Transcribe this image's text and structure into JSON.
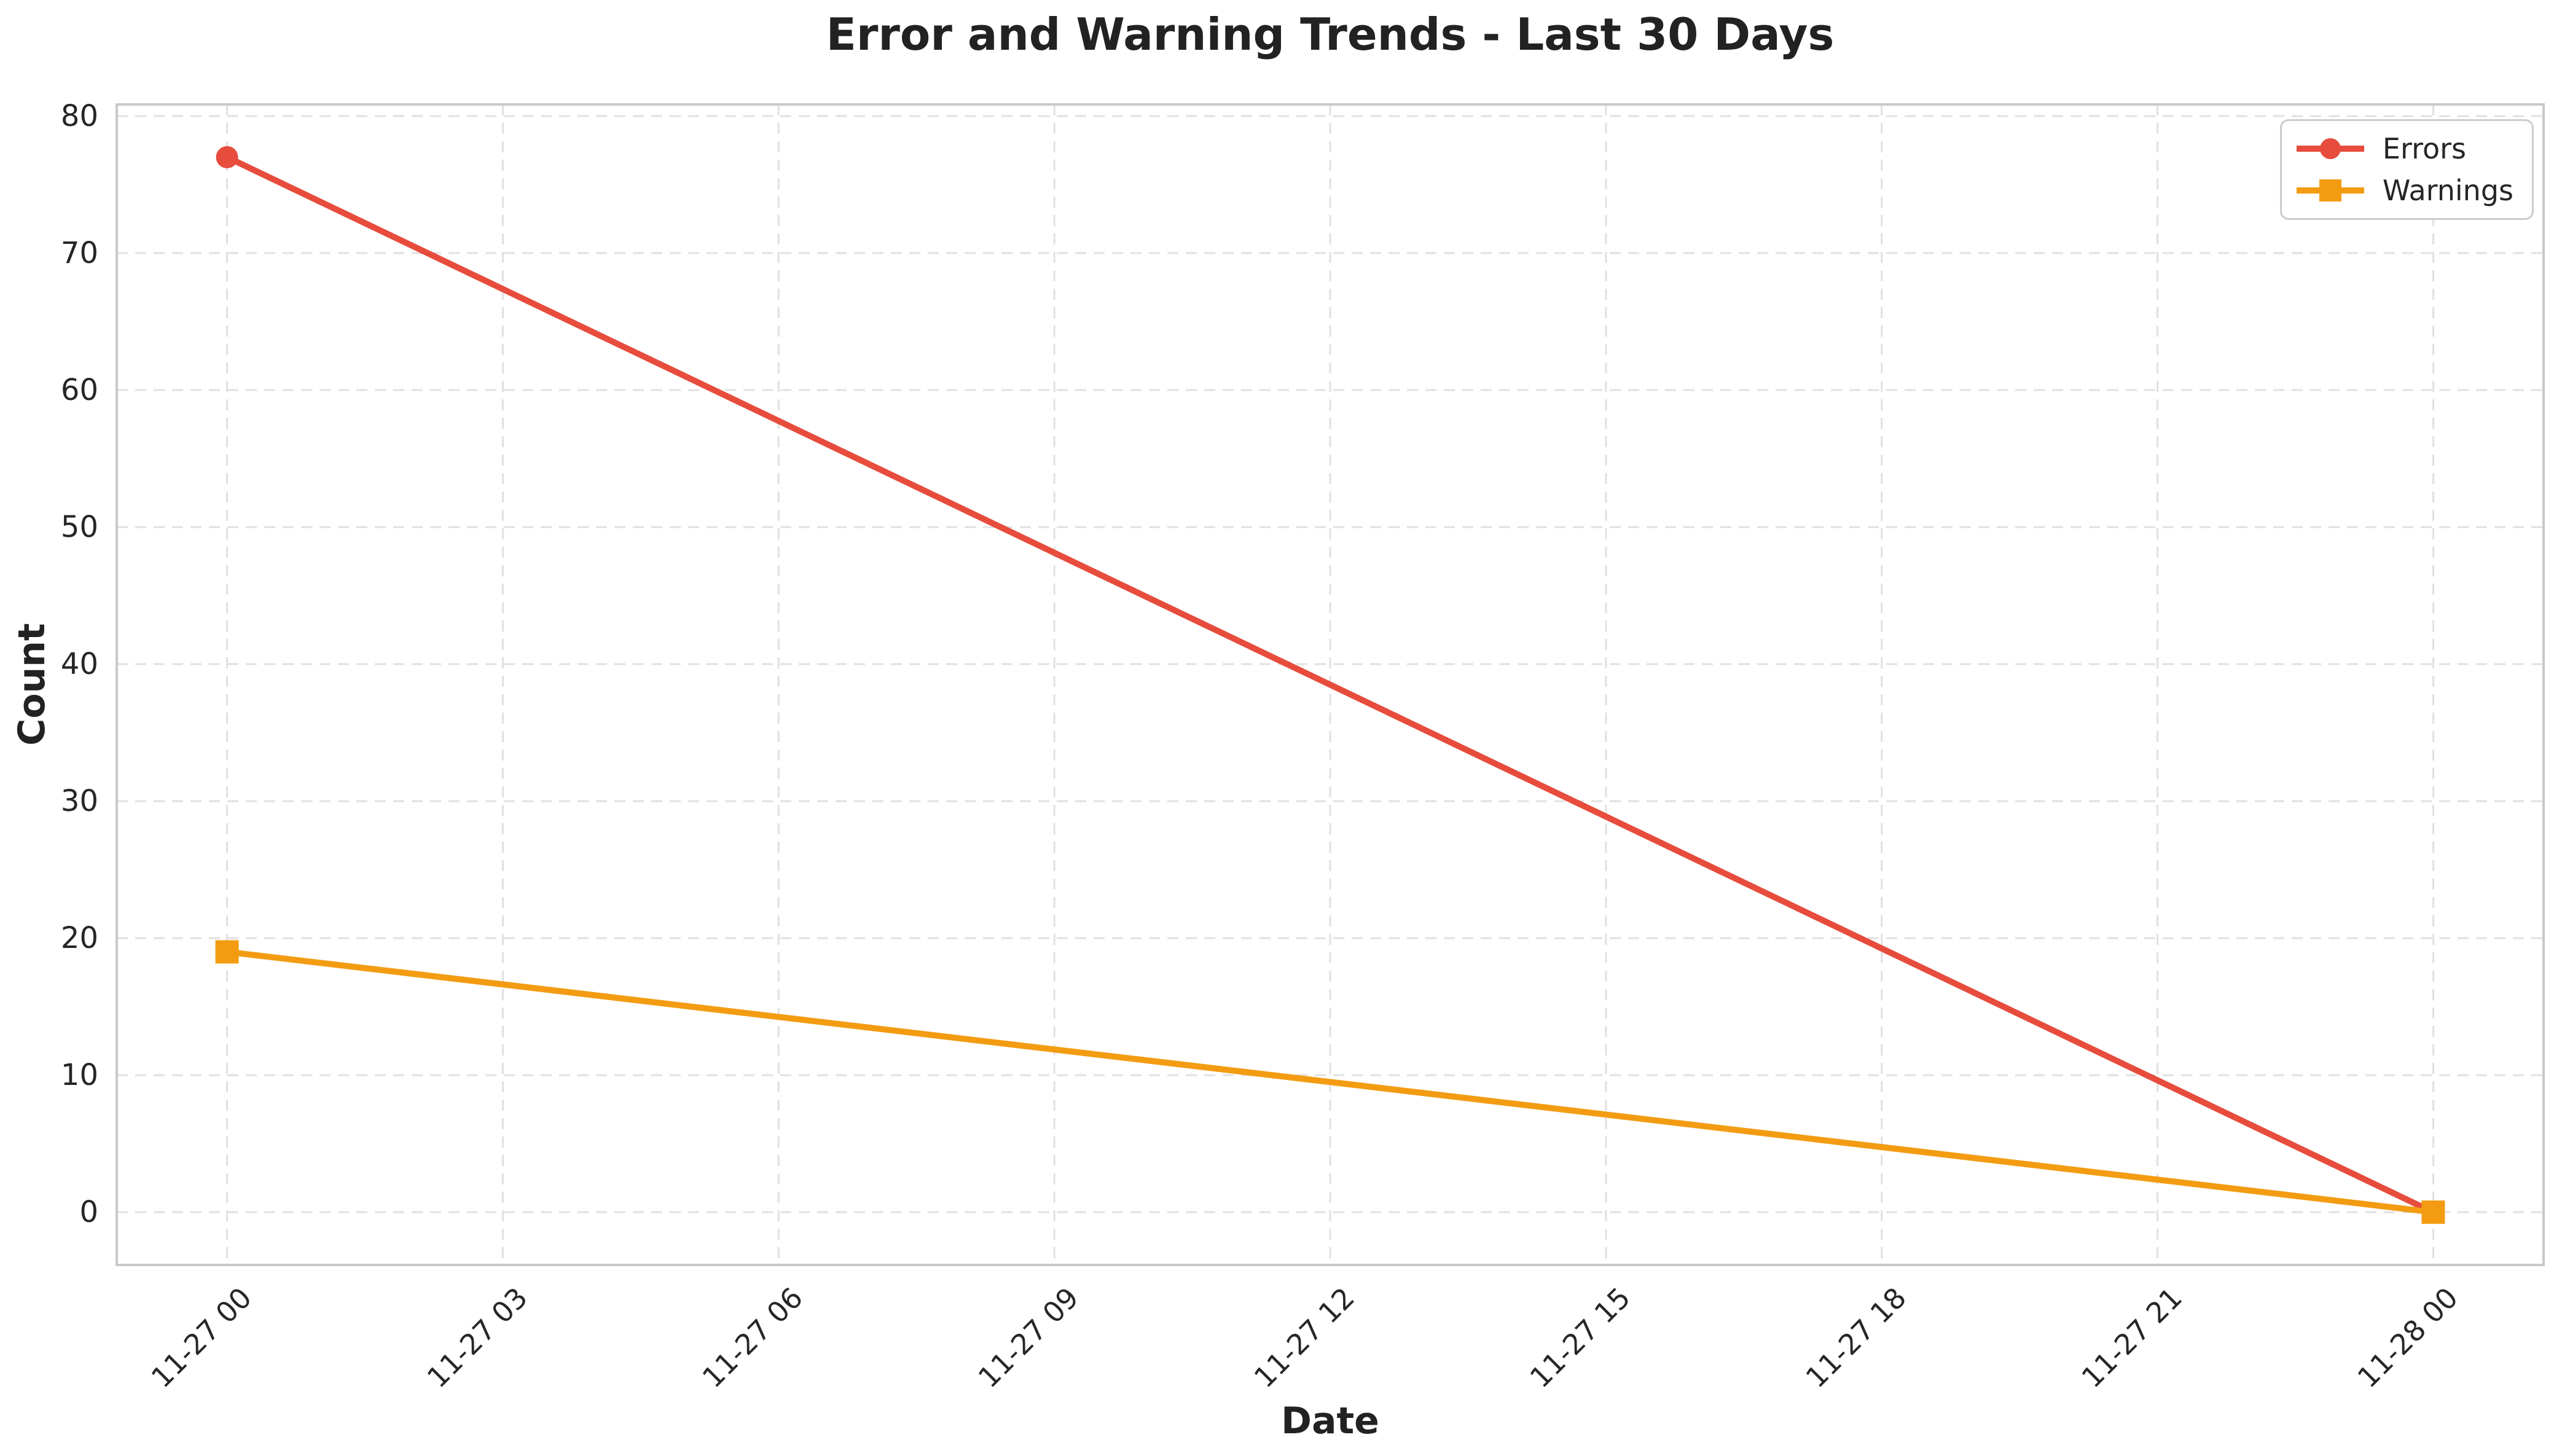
{
  "chart_data": {
    "type": "line",
    "title": "Error and Warning Trends - Last 30 Days",
    "xlabel": "Date",
    "ylabel": "Count",
    "x_tick_labels": [
      "11-27 00",
      "11-27 03",
      "11-27 06",
      "11-27 09",
      "11-27 12",
      "11-27 15",
      "11-27 18",
      "11-27 21",
      "11-28 00"
    ],
    "x_tick_hours": [
      0,
      3,
      6,
      9,
      12,
      15,
      18,
      21,
      24
    ],
    "yticks": [
      0,
      10,
      20,
      30,
      40,
      50,
      60,
      70,
      80
    ],
    "ylim": [
      0,
      80
    ],
    "xlim_hours": [
      0,
      24
    ],
    "grid": true,
    "grid_style": "dashed",
    "legend_position": "upper right",
    "series": [
      {
        "name": "Errors",
        "color": "#e74c3c",
        "marker": "circle",
        "x_labels": [
          "11-27 00",
          "11-28 00"
        ],
        "x_hours": [
          0,
          24
        ],
        "values": [
          77,
          0
        ]
      },
      {
        "name": "Warnings",
        "color": "#f39c12",
        "marker": "square",
        "x_labels": [
          "11-27 00",
          "11-28 00"
        ],
        "x_hours": [
          0,
          24
        ],
        "values": [
          19,
          0
        ]
      }
    ]
  },
  "colors": {
    "background": "#ffffff",
    "grid": "#e0e0e0",
    "spine": "#c9c9c9",
    "text": "#262626",
    "errors_line": "#e74c3c",
    "warnings_line": "#f39c12"
  }
}
